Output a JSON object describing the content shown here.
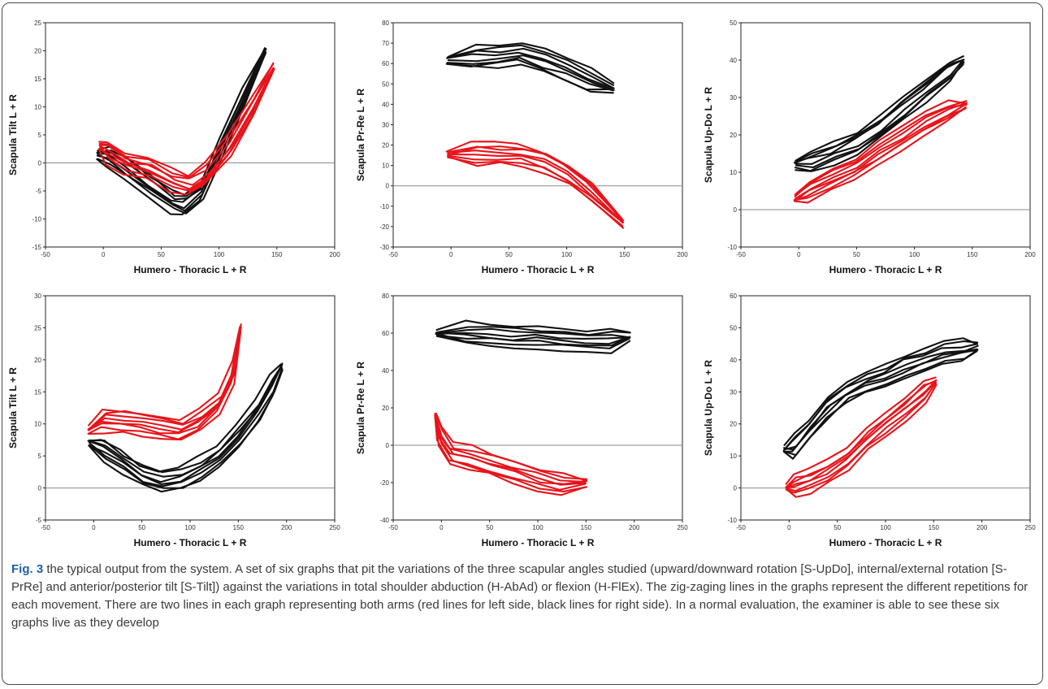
{
  "figure": {
    "caption_label": "Fig. 3",
    "caption_text": " the typical output from the system. A set of six graphs that pit the variations of the three scapular angles studied (upward/downward rotation [S-UpDo], internal/external rotation [S-PrRe] and anterior/posterior tilt [S-Tilt]) against the variations in total shoulder abduction (H-AbAd) or flexion (H-FlEx). The zig-zaging lines in the graphs represent the different repetitions for each movement. There are two lines in each graph representing both arms (red lines for left side, black lines for right side). In a normal evaluation, the examiner is able to see these six graphs live as they develop"
  },
  "colors": {
    "right_side": "#111111",
    "left_side": "#e8141b",
    "zero_line": "#8a8a8a",
    "frame": "#4a4a4a",
    "caption_label": "#1a5fa8"
  },
  "chart_data": [
    {
      "type": "line",
      "xlabel": "Humero -  Thoracic L + R",
      "ylabel": "Scapula Tilt L + R",
      "xlim": [
        -50,
        200
      ],
      "ylim": [
        -15,
        25
      ],
      "xticks": [
        -50,
        0,
        50,
        100,
        150,
        200
      ],
      "yticks": [
        -15,
        -10,
        -5,
        0,
        5,
        10,
        15,
        20,
        25
      ],
      "zero_line": 0,
      "series": [
        {
          "color": "black",
          "x": [
            -5,
            5,
            20,
            40,
            60,
            70,
            85,
            100,
            120,
            140
          ],
          "y": [
            1.5,
            1,
            -1,
            -4,
            -7,
            -7.5,
            -5,
            2,
            11,
            20
          ]
        },
        {
          "color": "red",
          "x": [
            -3,
            5,
            20,
            40,
            60,
            75,
            90,
            110,
            130,
            147
          ],
          "y": [
            3,
            2,
            0,
            -1,
            -3,
            -4,
            -2,
            3,
            10,
            17
          ]
        }
      ]
    },
    {
      "type": "line",
      "xlabel": "Humero -  Thoracic L + R",
      "ylabel": "Scapula Pr-Re L + R",
      "xlim": [
        -50,
        200
      ],
      "ylim": [
        -30,
        80
      ],
      "xticks": [
        -50,
        0,
        50,
        100,
        150,
        200
      ],
      "yticks": [
        -30,
        -20,
        -10,
        0,
        10,
        20,
        30,
        40,
        50,
        60,
        70,
        80
      ],
      "zero_line": 0,
      "series": [
        {
          "color": "black",
          "x": [
            -3,
            20,
            40,
            60,
            80,
            100,
            120,
            140
          ],
          "y": [
            62,
            63,
            64,
            65,
            61,
            57,
            52,
            48
          ]
        },
        {
          "color": "red",
          "x": [
            -3,
            20,
            40,
            60,
            80,
            100,
            120,
            148
          ],
          "y": [
            15,
            16,
            16,
            15,
            12,
            6,
            -3,
            -18
          ]
        }
      ]
    },
    {
      "type": "line",
      "xlabel": "Humero -  Thoracic L + R",
      "ylabel": "Scapula Up-Do L + R",
      "xlim": [
        -50,
        200
      ],
      "ylim": [
        -10,
        50
      ],
      "xticks": [
        -50,
        0,
        50,
        100,
        150,
        200
      ],
      "yticks": [
        -10,
        0,
        10,
        20,
        30,
        40,
        50
      ],
      "zero_line": 0,
      "series": [
        {
          "color": "black",
          "x": [
            -3,
            10,
            30,
            50,
            70,
            90,
            110,
            130,
            142
          ],
          "y": [
            12,
            13,
            15,
            18,
            22,
            27,
            32,
            37,
            40
          ]
        },
        {
          "color": "red",
          "x": [
            -3,
            10,
            30,
            50,
            70,
            90,
            110,
            130,
            145
          ],
          "y": [
            3,
            5,
            8,
            11,
            15,
            19,
            23,
            26,
            28
          ]
        }
      ]
    },
    {
      "type": "line",
      "xlabel": "Humero -  Thoracic L + R",
      "ylabel": "Scapula Tilt L + R",
      "xlim": [
        -50,
        250
      ],
      "ylim": [
        -5,
        30
      ],
      "xticks": [
        -50,
        0,
        50,
        100,
        150,
        200,
        250
      ],
      "yticks": [
        -5,
        0,
        5,
        10,
        15,
        20,
        25,
        30
      ],
      "zero_line": 0,
      "series": [
        {
          "color": "black",
          "x": [
            -5,
            10,
            30,
            50,
            70,
            90,
            110,
            130,
            150,
            170,
            185,
            195
          ],
          "y": [
            7,
            6,
            4,
            2,
            1,
            1.5,
            3,
            5,
            8,
            12,
            16,
            19
          ]
        },
        {
          "color": "red",
          "x": [
            -5,
            10,
            30,
            50,
            70,
            90,
            110,
            130,
            145,
            152
          ],
          "y": [
            9,
            10.5,
            10.5,
            10,
            9.5,
            9,
            10.5,
            13,
            18,
            25
          ]
        }
      ]
    },
    {
      "type": "line",
      "xlabel": "Humero -  Thoracic L + R",
      "ylabel": "Scapula Pr-Re L + R",
      "xlim": [
        -50,
        250
      ],
      "ylim": [
        -40,
        80
      ],
      "xticks": [
        -50,
        0,
        50,
        100,
        150,
        200,
        250
      ],
      "yticks": [
        -40,
        -20,
        0,
        20,
        40,
        60,
        80
      ],
      "zero_line": 0,
      "series": [
        {
          "color": "black",
          "x": [
            -5,
            25,
            50,
            75,
            100,
            125,
            150,
            175,
            195
          ],
          "y": [
            60,
            60,
            59,
            58,
            58,
            57,
            56,
            56,
            58
          ]
        },
        {
          "color": "red",
          "x": [
            -6,
            -2,
            10,
            30,
            50,
            75,
            100,
            125,
            150
          ],
          "y": [
            16,
            5,
            -5,
            -7,
            -10,
            -14,
            -18,
            -21,
            -20
          ]
        }
      ]
    },
    {
      "type": "line",
      "xlabel": "Humero -  Thoracic L + R",
      "ylabel": "Scapula Up-Do L + R",
      "xlim": [
        -50,
        250
      ],
      "ylim": [
        -10,
        60
      ],
      "xticks": [
        -50,
        0,
        50,
        100,
        150,
        200,
        250
      ],
      "yticks": [
        -10,
        0,
        10,
        20,
        30,
        40,
        50,
        60
      ],
      "zero_line": 0,
      "series": [
        {
          "color": "black",
          "x": [
            -5,
            5,
            20,
            40,
            60,
            80,
            100,
            120,
            140,
            160,
            180,
            195
          ],
          "y": [
            12,
            13,
            18,
            25,
            30,
            33,
            35,
            38,
            40,
            42,
            43,
            44
          ]
        },
        {
          "color": "red",
          "x": [
            -3,
            5,
            20,
            40,
            60,
            80,
            100,
            120,
            140,
            152
          ],
          "y": [
            0,
            1,
            2,
            5,
            9,
            15,
            20,
            25,
            30,
            33
          ]
        }
      ]
    }
  ]
}
